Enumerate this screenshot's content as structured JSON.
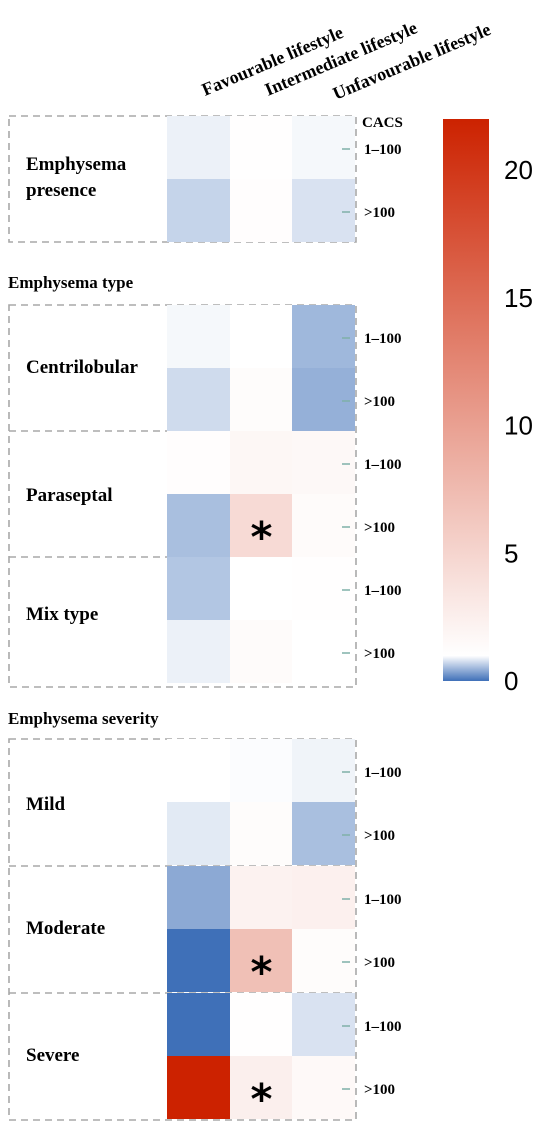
{
  "chart_data": {
    "type": "heatmap",
    "columns": [
      "Favourable lifestyle",
      "Intermediate lifestyle",
      "Unfavourable lifestyle"
    ],
    "row_header": "CACS",
    "row_labels": [
      "1–100",
      ">100"
    ],
    "sections": [
      {
        "title": "",
        "groups": [
          {
            "label": "Emphysema presence",
            "cells": [
              [
                0.9,
                1.1,
                0.95
              ],
              [
                0.7,
                1.2,
                0.8
              ]
            ],
            "significant": []
          }
        ]
      },
      {
        "title": "Emphysema type",
        "groups": [
          {
            "label": "Centrilobular",
            "cells": [
              [
                0.95,
                1.0,
                0.5
              ],
              [
                0.75,
                1.3,
                0.45
              ]
            ],
            "significant": []
          },
          {
            "label": "Paraseptal",
            "cells": [
              [
                1.2,
                1.8,
                1.7
              ],
              [
                0.55,
                4.5,
                1.4
              ]
            ],
            "significant": [
              [
                1,
                1
              ]
            ]
          },
          {
            "label": "Mix type",
            "cells": [
              [
                0.6,
                1.0,
                1.1
              ],
              [
                0.9,
                1.4,
                1.0
              ]
            ],
            "significant": []
          }
        ]
      },
      {
        "title": "Emphysema severity",
        "groups": [
          {
            "label": "Mild",
            "cells": [
              [
                1.0,
                0.98,
                0.92
              ],
              [
                0.85,
                1.3,
                0.55
              ]
            ],
            "significant": []
          },
          {
            "label": "Moderate",
            "cells": [
              [
                0.4,
                2.2,
                2.4
              ],
              [
                0.0,
                7.0,
                1.3
              ]
            ],
            "significant": [
              [
                1,
                1
              ]
            ]
          },
          {
            "label": "Severe",
            "cells": [
              [
                0.0,
                1.1,
                0.8
              ],
              [
                22.0,
                2.5,
                1.6
              ]
            ],
            "significant": [
              [
                1,
                1
              ]
            ]
          }
        ]
      }
    ],
    "colorbar": {
      "min": 0,
      "max": 22,
      "ticks": [
        0,
        5,
        10,
        15,
        20
      ],
      "low_color": "#3F70B8",
      "mid_color": "#FFFFFF",
      "high_color": "#CC2200",
      "mid_value": 1
    },
    "significance_marker": "*"
  }
}
